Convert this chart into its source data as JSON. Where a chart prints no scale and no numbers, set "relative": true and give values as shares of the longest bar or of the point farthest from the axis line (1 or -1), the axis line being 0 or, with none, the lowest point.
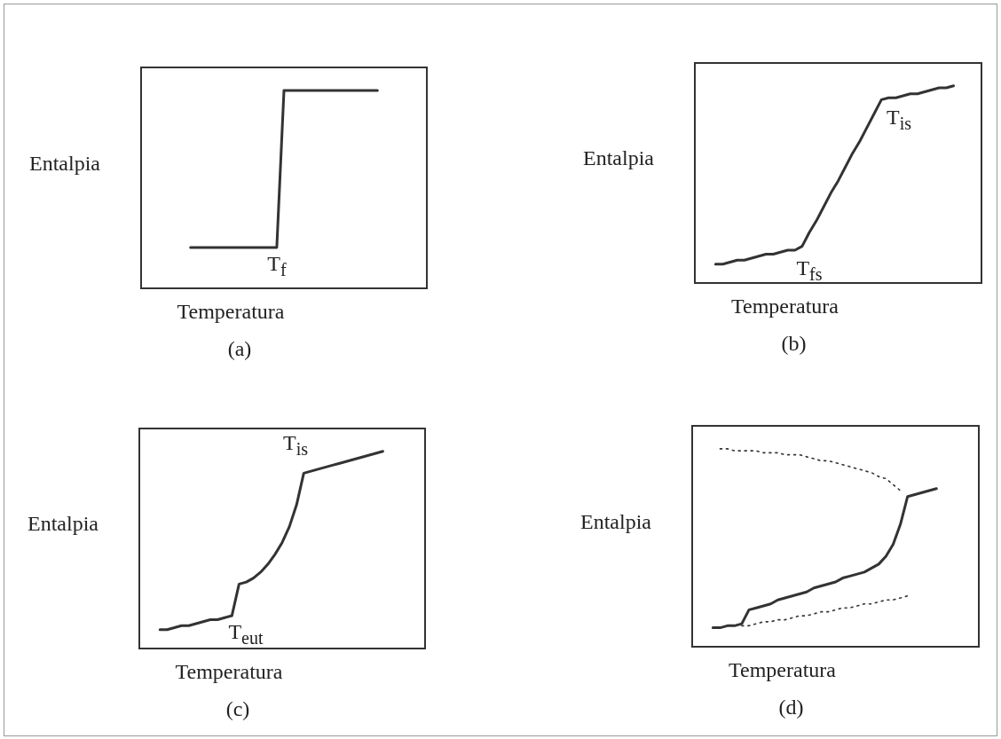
{
  "chart_data": [
    {
      "type": "line",
      "title": "(a)",
      "xlabel": "Temperatura",
      "ylabel": "Entalpia",
      "relative": true,
      "categories": [
        null,
        null,
        null,
        null,
        null,
        null,
        null,
        null,
        null,
        null,
        null,
        null,
        null,
        null,
        null,
        null,
        null,
        null,
        null,
        null,
        null,
        null,
        null,
        null,
        null,
        null,
        null,
        null,
        null,
        null,
        null,
        null,
        null,
        null,
        null,
        null,
        null,
        null,
        null,
        null,
        null
      ],
      "series": [
        {
          "color": "#333333",
          "values": [
            null,
            null,
            null,
            null,
            null,
            null,
            null,
            0.21,
            0.21,
            0.21,
            0.21,
            0.21,
            0.21,
            0.21,
            0.21,
            0.21,
            0.21,
            0.21,
            0.21,
            0.21,
            1,
            1,
            1,
            1,
            1,
            1,
            1,
            1,
            1,
            1,
            1,
            1,
            1,
            1,
            null,
            null,
            null,
            null,
            null,
            null,
            null
          ]
        }
      ],
      "annotations": [
        "T$_{f}$"
      ]
    },
    {
      "type": "line",
      "title": "(b)",
      "xlabel": "Temperatura",
      "ylabel": "Entalpia",
      "relative": true,
      "categories": [
        null,
        null,
        null,
        null,
        null,
        null,
        null,
        null,
        null,
        null,
        null,
        null,
        null,
        null,
        null,
        null,
        null,
        null,
        null,
        null,
        null,
        null,
        null,
        null,
        null,
        null,
        null,
        null,
        null,
        null,
        null,
        null,
        null,
        null,
        null,
        null,
        null,
        null,
        null,
        null,
        null
      ],
      "series": [
        {
          "color": "#333333",
          "values": [
            null,
            null,
            null,
            0.1,
            0.1,
            0.11,
            0.12,
            0.12,
            0.13,
            0.14,
            0.15,
            0.15,
            0.16,
            0.17,
            0.17,
            0.19,
            0.26,
            0.32,
            0.39,
            0.46,
            0.52,
            0.59,
            0.66,
            0.72,
            0.79,
            0.86,
            0.93,
            0.94,
            0.94,
            0.95,
            0.96,
            0.96,
            0.97,
            0.98,
            0.99,
            0.99,
            1,
            null,
            null,
            null,
            null
          ]
        }
      ],
      "annotations": [
        "T$_{fs}$",
        "T$_{is}$"
      ]
    },
    {
      "type": "line",
      "title": "(c)",
      "xlabel": "Temperatura",
      "ylabel": "Entalpia",
      "relative": true,
      "categories": [
        null,
        null,
        null,
        null,
        null,
        null,
        null,
        null,
        null,
        null,
        null,
        null,
        null,
        null,
        null,
        null,
        null,
        null,
        null,
        null,
        null,
        null,
        null,
        null,
        null,
        null,
        null,
        null,
        null,
        null,
        null,
        null,
        null,
        null,
        null,
        null,
        null,
        null,
        null,
        null,
        null
      ],
      "series": [
        {
          "color": "#333333",
          "values": [
            null,
            null,
            null,
            0.1,
            0.1,
            0.11,
            0.12,
            0.12,
            0.13,
            0.14,
            0.15,
            0.15,
            0.16,
            0.17,
            0.33,
            0.34,
            0.36,
            0.39,
            0.43,
            0.48,
            0.54,
            0.62,
            0.73,
            0.89,
            0.9,
            0.91,
            0.92,
            0.93,
            0.94,
            0.95,
            0.96,
            0.97,
            0.98,
            0.99,
            1,
            null,
            null,
            null,
            null,
            null,
            null
          ]
        }
      ],
      "annotations": [
        "T$_{eut}$",
        "T$_{is}$"
      ]
    },
    {
      "type": "line",
      "title": "(d)",
      "xlabel": "Temperatura",
      "ylabel": "Entalpia",
      "relative": true,
      "categories": [
        null,
        null,
        null,
        null,
        null,
        null,
        null,
        null,
        null,
        null,
        null,
        null,
        null,
        null,
        null,
        null,
        null,
        null,
        null,
        null,
        null,
        null,
        null,
        null,
        null,
        null,
        null,
        null,
        null,
        null,
        null,
        null,
        null,
        null,
        null,
        null,
        null,
        null,
        null,
        null,
        null
      ],
      "series": [
        {
          "color": "#333333",
          "values": [
            null,
            null,
            null,
            0.1,
            0.1,
            0.11,
            0.11,
            0.12,
            0.19,
            0.2,
            0.21,
            0.22,
            0.24,
            0.25,
            0.26,
            0.27,
            0.28,
            0.3,
            0.31,
            0.32,
            0.33,
            0.35,
            0.36,
            0.37,
            0.38,
            0.4,
            0.42,
            0.46,
            0.52,
            0.62,
            0.76,
            0.77,
            0.78,
            0.79,
            0.8,
            null,
            null,
            null,
            null,
            null,
            null
          ]
        },
        {
          "color": "#333333",
          "line_style": "dotted",
          "values": [
            null,
            null,
            null,
            null,
            1,
            1,
            0.99,
            0.99,
            0.99,
            0.99,
            0.98,
            0.98,
            0.98,
            0.97,
            0.97,
            0.97,
            0.96,
            0.95,
            0.94,
            0.94,
            0.93,
            0.92,
            0.91,
            0.9,
            0.89,
            0.88,
            0.86,
            0.85,
            0.82,
            0.79,
            null,
            null,
            null,
            null,
            null,
            null,
            null,
            null,
            null,
            null,
            null
          ]
        },
        {
          "color": "#333333",
          "line_style": "dotted",
          "values": [
            null,
            null,
            null,
            null,
            null,
            null,
            null,
            0.11,
            0.11,
            0.12,
            0.13,
            0.13,
            0.14,
            0.14,
            0.15,
            0.16,
            0.16,
            0.17,
            0.18,
            0.18,
            0.19,
            0.2,
            0.2,
            0.21,
            0.22,
            0.22,
            0.23,
            0.24,
            0.24,
            0.25,
            0.26,
            null,
            null,
            null,
            null,
            null,
            null,
            null,
            null,
            null,
            null
          ]
        }
      ]
    }
  ]
}
